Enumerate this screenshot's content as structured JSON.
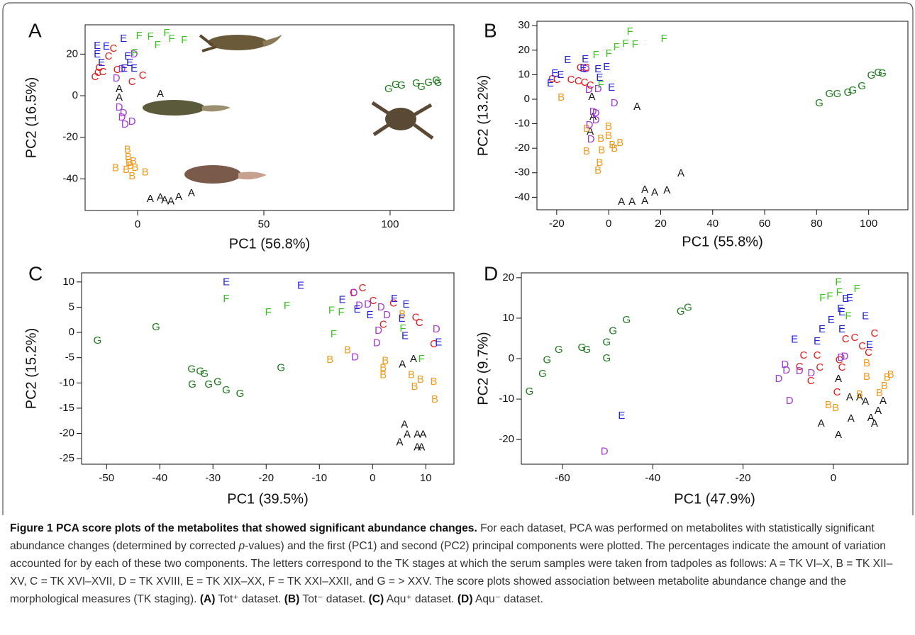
{
  "chart_data": [
    {
      "type": "scatter",
      "panel": "A",
      "x_label": "PC1 (56.8%)",
      "y_label": "PC2 (16.5%)",
      "xlim": [
        -20.8,
        125.3
      ],
      "ylim": [
        -55.2,
        34.1
      ],
      "xticks": [
        0,
        50,
        100
      ],
      "yticks": [
        -40,
        -20,
        0,
        20
      ],
      "series": [
        {
          "name": "A",
          "color": "#111111",
          "x": [
            9,
            -7.3,
            -7.3,
            5,
            9,
            10.7,
            13.2,
            16.3,
            21.3
          ],
          "values": [
            0.7,
            3,
            -1,
            -49.7,
            -49,
            -50.4,
            -51,
            -48.7,
            -47
          ]
        },
        {
          "name": "B",
          "color": "#f39a1e",
          "x": [
            -8.7,
            -4,
            -3.7,
            -3.4,
            -2.8,
            -1.7,
            -1,
            -2.2,
            3,
            -4.5
          ],
          "values": [
            -35,
            -26,
            -29.6,
            -32.4,
            -33.7,
            -31.7,
            -34.8,
            -38.8,
            -37,
            -35.8
          ]
        },
        {
          "name": "C",
          "color": "#e8191a",
          "x": [
            -16.9,
            -15.2,
            -13.8,
            -11.5,
            -9.6,
            -8.1,
            -2.2,
            2,
            -15.7
          ],
          "values": [
            8.9,
            13.3,
            11.2,
            18.7,
            22.5,
            12.3,
            6.5,
            9.5,
            10.9
          ]
        },
        {
          "name": "D",
          "color": "#a23ad6",
          "x": [
            -8.4,
            -7.3,
            -6.2,
            -5,
            -2.2,
            -5.6,
            -6.2,
            -1.4
          ],
          "values": [
            8.2,
            -5.8,
            -10.6,
            -14,
            -12.6,
            -8.5,
            12.6,
            19.8
          ]
        },
        {
          "name": "E",
          "color": "#2323d8",
          "x": [
            -16,
            -12.4,
            -16,
            -5.6,
            -3.9,
            -3.1,
            -1.4,
            -5.3,
            -14.3
          ],
          "values": [
            23.8,
            23.5,
            19.8,
            27.3,
            18.7,
            15.7,
            12.9,
            12.9,
            15.7
          ]
        },
        {
          "name": "F",
          "color": "#38c41f",
          "x": [
            0.6,
            5.1,
            7.9,
            11.5,
            13.5,
            18.5,
            -1.1
          ],
          "values": [
            28.6,
            28.3,
            24.2,
            30,
            27.3,
            26.6,
            20.4
          ]
        },
        {
          "name": "G",
          "color": "#1c7a1c",
          "x": [
            99.4,
            102.2,
            104.5,
            110.4,
            112.4,
            115.2,
            118.3,
            119
          ],
          "values": [
            3.1,
            5.1,
            4.8,
            5.8,
            4.1,
            6.1,
            7.2,
            6.1
          ]
        }
      ]
    },
    {
      "type": "scatter",
      "panel": "B",
      "x_label": "PC1 (55.8%)",
      "y_label": "PC2 (13.2%)",
      "xlim": [
        -27.6,
        115.1
      ],
      "ylim": [
        -45.1,
        31.8
      ],
      "xticks": [
        -20,
        0,
        20,
        40,
        60,
        80,
        100
      ],
      "yticks": [
        -40,
        -30,
        -20,
        -10,
        0,
        10,
        20,
        30
      ],
      "series": [
        {
          "name": "A",
          "color": "#111111",
          "x": [
            -6.5,
            10.9,
            -7.1,
            -6,
            27.8,
            22.4,
            17.7,
            13.9,
            13.9,
            9,
            4.9
          ],
          "values": [
            0.9,
            -3.2,
            -13.3,
            -7.2,
            -30.3,
            -37.3,
            -38.2,
            -37,
            -41.6,
            -41.9,
            -41.9
          ]
        },
        {
          "name": "B",
          "color": "#f39a1e",
          "x": [
            -18.3,
            -8.5,
            -3,
            0,
            0,
            1.4,
            4.4,
            -2.7,
            -3.5,
            -4.1,
            -8.5,
            2.2
          ],
          "values": [
            0.6,
            -12.1,
            -16.2,
            -11.3,
            -15,
            -18.8,
            -17.9,
            -21,
            -26,
            -29.2,
            -21.4,
            -20.2
          ]
        },
        {
          "name": "C",
          "color": "#e8191a",
          "x": [
            -21.8,
            -19.9,
            -14.5,
            -11.7,
            -9.3,
            -7.1,
            -10.9,
            -8.7
          ],
          "values": [
            8.1,
            7.8,
            7.8,
            7.2,
            6.6,
            5.5,
            12.7,
            12.7
          ]
        },
        {
          "name": "D",
          "color": "#a23ad6",
          "x": [
            -8.7,
            -7.6,
            -6,
            -4.9,
            -7.4,
            2.2,
            -6.8,
            -4.1,
            -4.9
          ],
          "values": [
            12.1,
            3.8,
            -5.2,
            -8.7,
            -10.7,
            -1.7,
            -16.5,
            4,
            -5.8
          ]
        },
        {
          "name": "E",
          "color": "#2323d8",
          "x": [
            -22.4,
            -20.7,
            -18.5,
            -15.8,
            -9.8,
            -9,
            -4.1,
            -3.5,
            -0.8,
            1.1
          ],
          "values": [
            6.4,
            10.4,
            9.8,
            15.9,
            12.4,
            16.2,
            12.1,
            8.7,
            13,
            4.6
          ]
        },
        {
          "name": "F",
          "color": "#38c41f",
          "x": [
            -4.9,
            0,
            3,
            6.5,
            10.1,
            8.2,
            21.3,
            -3
          ],
          "values": [
            17.9,
            18.5,
            21.1,
            22.5,
            22.3,
            27.5,
            24.6,
            5.8
          ]
        },
        {
          "name": "G",
          "color": "#1c7a1c",
          "x": [
            81,
            84.9,
            87.9,
            92,
            93.9,
            97.4,
            101,
            103.7,
            105.3
          ],
          "values": [
            -1.7,
            2,
            2,
            2.6,
            3.5,
            5.2,
            9.5,
            10.7,
            10.4
          ]
        }
      ]
    },
    {
      "type": "scatter",
      "panel": "C",
      "x_label": "PC1 (39.5%)",
      "y_label": "PC2 (15.2%)",
      "xlim": [
        -54.7,
        15.3
      ],
      "ylim": [
        -26.1,
        11.8
      ],
      "xticks": [
        -50,
        -40,
        -30,
        -20,
        -10,
        0,
        10
      ],
      "yticks": [
        -25,
        -20,
        -15,
        -10,
        -5,
        0,
        5,
        10
      ],
      "series": [
        {
          "name": "A",
          "color": "#111111",
          "x": [
            6,
            5.1,
            6.5,
            8.4,
            9.5,
            8.4,
            9.2,
            5.6,
            7.7
          ],
          "values": [
            -18.3,
            -21.8,
            -20.3,
            -20.3,
            -20.3,
            -22.8,
            -22.8,
            -6.4,
            -5.3
          ]
        },
        {
          "name": "B",
          "color": "#f39a1e",
          "x": [
            -8,
            -4.7,
            2.4,
            2,
            2,
            7.3,
            9,
            7.9,
            11.5,
            11.7,
            5.6
          ],
          "values": [
            -5.5,
            -3.6,
            -5.7,
            -7.1,
            -8.5,
            -8.5,
            -9.4,
            -10.8,
            -9.8,
            -13.3,
            3.5
          ]
        },
        {
          "name": "C",
          "color": "#e8191a",
          "x": [
            -3.6,
            -1.9,
            0.1,
            3.9,
            8.1,
            8.8,
            11.5,
            2
          ],
          "values": [
            7.8,
            8.7,
            6.2,
            5.7,
            2.9,
            1.8,
            -2.4,
            1.5
          ]
        },
        {
          "name": "D",
          "color": "#a23ad6",
          "x": [
            -3.5,
            -2.5,
            -0.9,
            1.6,
            2.7,
            1.1,
            0.8,
            -3.3,
            12
          ],
          "values": [
            7.7,
            5.3,
            5.5,
            4.9,
            3.4,
            0.3,
            -2.2,
            -5,
            0.6
          ]
        },
        {
          "name": "E",
          "color": "#2323d8",
          "x": [
            -27.5,
            -13.5,
            -5.7,
            -2.9,
            -0.5,
            4.1,
            6.3,
            5.5,
            6.1,
            12.4
          ],
          "values": [
            9.9,
            9.2,
            6.4,
            4.5,
            3.4,
            6.6,
            5.5,
            2.7,
            -0.8,
            -2
          ]
        },
        {
          "name": "F",
          "color": "#38c41f",
          "x": [
            -27.5,
            -19.6,
            -16.1,
            -7.7,
            -7.3,
            -5.9,
            5.7,
            9.2
          ],
          "values": [
            6.6,
            3.9,
            5.2,
            4.3,
            -0.4,
            3.9,
            0.7,
            -5.3
          ]
        },
        {
          "name": "G",
          "color": "#1c7a1c",
          "x": [
            -51.7,
            -40.7,
            -34,
            -32.4,
            -31.6,
            -33.9,
            -30.8,
            -29.1,
            -27.5,
            -24.9,
            -17.2
          ],
          "values": [
            -1.7,
            1,
            -7.4,
            -7.8,
            -8.3,
            -10.4,
            -10.4,
            -9.9,
            -11.5,
            -12.2,
            -7.1
          ]
        }
      ]
    },
    {
      "type": "scatter",
      "panel": "D",
      "x_label": "PC1 (47.9%)",
      "y_label": "PC2 (9.7%)",
      "xlim": [
        -69.1,
        16.5
      ],
      "ylim": [
        -26.1,
        21.2
      ],
      "xticks": [
        -60,
        -40,
        -20,
        0
      ],
      "yticks": [
        -20,
        -10,
        0,
        10,
        20
      ],
      "series": [
        {
          "name": "A",
          "color": "#111111",
          "x": [
            1.1,
            3.6,
            5.8,
            7.1,
            8.3,
            9.1,
            9.9,
            11,
            -2.7,
            1.1,
            3.9
          ],
          "values": [
            -5.1,
            -9.6,
            -9.6,
            -10.7,
            -14.7,
            -16.1,
            -13,
            -10.5,
            -16.1,
            -18.9,
            -14.9
          ]
        },
        {
          "name": "B",
          "color": "#f39a1e",
          "x": [
            -1.1,
            0.5,
            5.8,
            7.4,
            7.4,
            10.2,
            11.3,
            11.9,
            12.7
          ],
          "values": [
            -11.6,
            -12.3,
            -8.9,
            -4.6,
            -1.2,
            -8.6,
            -6.8,
            -4.7,
            -4
          ]
        },
        {
          "name": "C",
          "color": "#e8191a",
          "x": [
            -7.5,
            -6.6,
            -3.6,
            -3,
            1.3,
            1.9,
            2.7,
            4.7,
            6.4,
            9.1,
            7.8,
            -5,
            0.8
          ],
          "values": [
            -2.1,
            0.7,
            0.7,
            -2.3,
            -0.4,
            -2.3,
            4.7,
            5.1,
            3,
            6.1,
            1.4,
            -5.6,
            -8.4
          ]
        },
        {
          "name": "D",
          "color": "#a23ad6",
          "x": [
            -12.1,
            -10.4,
            -7.5,
            -10.7,
            -9.7,
            -4.9,
            1.7,
            2.5,
            -50.7
          ],
          "values": [
            -5.1,
            -3,
            -3.2,
            -1.6,
            -10.5,
            -3.7,
            0.2,
            0.4,
            -23
          ]
        },
        {
          "name": "E",
          "color": "#2323d8",
          "x": [
            -8.6,
            -3.6,
            -2.5,
            -0.5,
            1.6,
            1.9,
            2.7,
            3.6,
            1.9,
            7.1,
            8,
            -46.9
          ],
          "values": [
            4.6,
            4.2,
            7.2,
            9.5,
            12.3,
            11.4,
            14.7,
            14.9,
            7.2,
            10.4,
            3.3,
            -14.2
          ]
        },
        {
          "name": "F",
          "color": "#38c41f",
          "x": [
            1.1,
            -2.4,
            -0.8,
            1.3,
            5.2,
            3.3
          ],
          "values": [
            18.8,
            14.9,
            15.3,
            16.3,
            17.2,
            10.4
          ]
        },
        {
          "name": "G",
          "color": "#1c7a1c",
          "x": [
            -67.3,
            -64.4,
            -63.4,
            -60.8,
            -55.7,
            -54.6,
            -50.2,
            -48.8,
            -45.8,
            -50.2,
            -33.8,
            -32.2
          ],
          "values": [
            -8.2,
            -3.9,
            -0.4,
            2.1,
            2.6,
            2.1,
            3.9,
            6.7,
            9.5,
            0,
            11.6,
            12.5
          ]
        }
      ]
    }
  ],
  "caption": [
    {
      "text": "Figure 1 PCA score plots of the metabolites that showed significant abundance changes.",
      "style": "bold"
    },
    {
      "text": " For each dataset, PCA was performed on metabolites with statistically significant abundance changes (determined by corrected ",
      "style": "normal"
    },
    {
      "text": "p",
      "style": "italic"
    },
    {
      "text": "-values) and the first (PC1) and second (PC2) principal components were plotted. The percentages indicate the amount of variation accounted for by each of these two components. The letters correspond to the TK stages at which the serum samples were taken from tadpoles as follows: A = TK VI–X, B = TK XII–XV, C = TK XVI–XVII, D = TK XVIII, E = TK XIX–XX, F = TK XXI–XXII, and G = > XXV. The score plots showed association between metabolite abundance change and the morphological measures (TK staging). ",
      "style": "normal"
    },
    {
      "text": "(A)",
      "style": "bold"
    },
    {
      "text": " Tot⁺ dataset. ",
      "style": "normal"
    },
    {
      "text": "(B)",
      "style": "bold"
    },
    {
      "text": " Tot⁻ dataset. ",
      "style": "normal"
    },
    {
      "text": "(C)",
      "style": "bold"
    },
    {
      "text": " Aqu⁺ dataset. ",
      "style": "normal"
    },
    {
      "text": "(D)",
      "style": "bold"
    },
    {
      "text": " Aqu⁻ dataset.",
      "style": "normal"
    }
  ]
}
